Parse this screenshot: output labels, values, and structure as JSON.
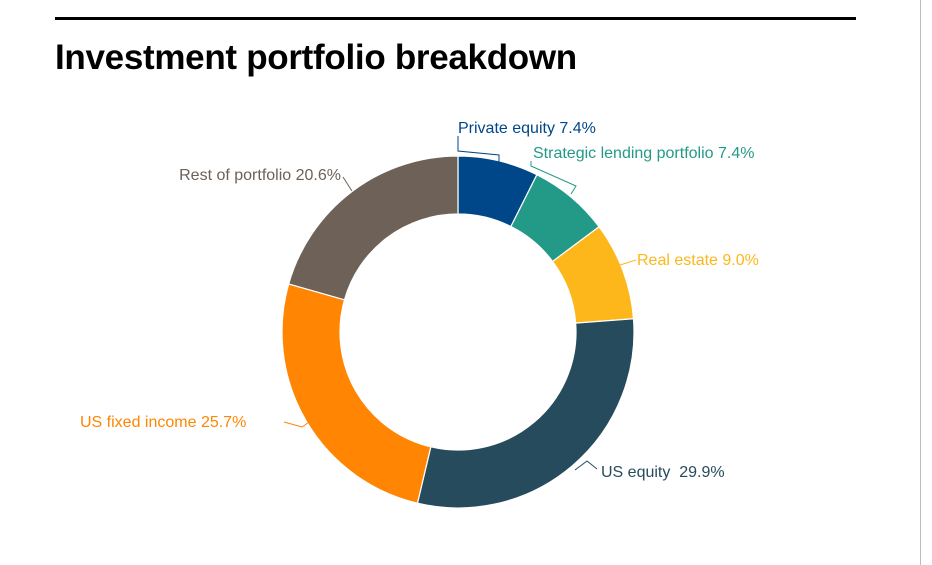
{
  "title": "Investment portfolio breakdown",
  "chart_data": {
    "type": "pie",
    "variant": "donut",
    "title": "Investment portfolio breakdown",
    "start_angle_deg": 0,
    "direction": "clockwise",
    "slices": [
      {
        "label": "Private equity",
        "value": 7.4,
        "display": "Private equity 7.4%",
        "color": "#00478a"
      },
      {
        "label": "Strategic lending portfolio",
        "value": 7.4,
        "display": "Strategic lending portfolio 7.4%",
        "color": "#239a88"
      },
      {
        "label": "Real estate",
        "value": 9.0,
        "display": "Real estate 9.0%",
        "color": "#fdb71b"
      },
      {
        "label": "US equity",
        "value": 29.9,
        "display": "US equity  29.9%",
        "color": "#254b5c"
      },
      {
        "label": "US fixed income",
        "value": 25.7,
        "display": "US fixed income 25.7%",
        "color": "#ff8502"
      },
      {
        "label": "Rest of portfolio",
        "value": 20.6,
        "display": "Rest of portfolio 20.6%",
        "color": "#6d6158"
      }
    ]
  }
}
